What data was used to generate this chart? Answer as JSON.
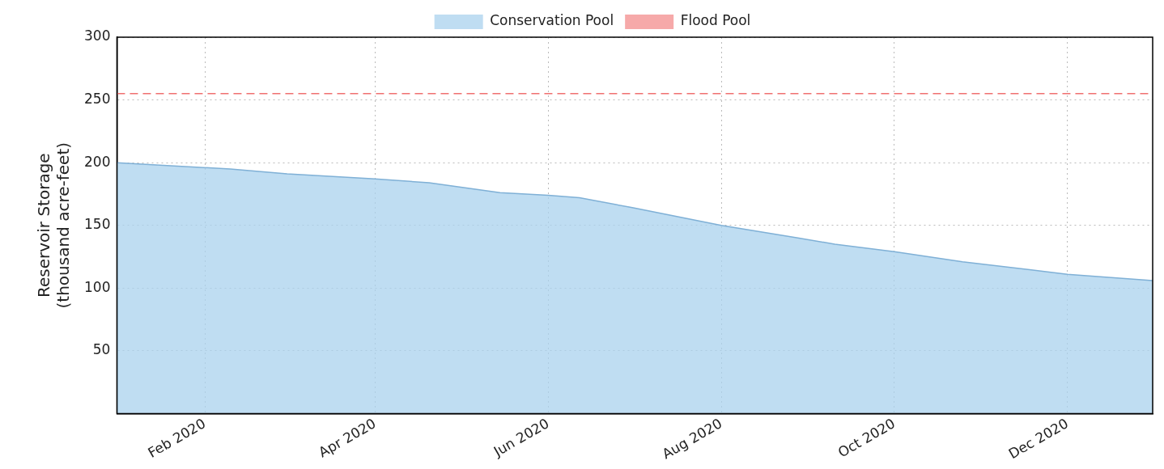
{
  "chart_data": {
    "type": "area",
    "ylabel": "Reservoir Storage\n(thousand acre-feet)",
    "x": [
      "2020-01-01",
      "2020-01-20",
      "2020-02-10",
      "2020-03-01",
      "2020-04-01",
      "2020-04-20",
      "2020-05-15",
      "2020-06-01",
      "2020-06-12",
      "2020-07-01",
      "2020-08-01",
      "2020-08-28",
      "2020-09-10",
      "2020-10-01",
      "2020-10-25",
      "2020-12-01",
      "2020-12-31"
    ],
    "series": [
      {
        "name": "Conservation Pool",
        "color": "#a9d2ee",
        "values": [
          200,
          197.5,
          195,
          191,
          187,
          184,
          176,
          174,
          172,
          164,
          150,
          140,
          135,
          129,
          121,
          111,
          106
        ]
      },
      {
        "name": "Flood Pool",
        "type": "line",
        "color": "#f07070",
        "line_style": "dashed",
        "values": [
          255,
          255,
          255,
          255,
          255,
          255,
          255,
          255,
          255,
          255,
          255,
          255,
          255,
          255,
          255,
          255,
          255
        ]
      }
    ],
    "xlim": [
      "2020-01-01",
      "2020-12-31"
    ],
    "xticks": [
      {
        "value": "2020-02-01",
        "label": "Feb 2020"
      },
      {
        "value": "2020-04-01",
        "label": "Apr 2020"
      },
      {
        "value": "2020-06-01",
        "label": "Jun 2020"
      },
      {
        "value": "2020-08-01",
        "label": "Aug 2020"
      },
      {
        "value": "2020-10-01",
        "label": "Oct 2020"
      },
      {
        "value": "2020-12-01",
        "label": "Dec 2020"
      }
    ],
    "ylim": [
      0,
      300
    ],
    "yticks": [
      50,
      100,
      150,
      200,
      250,
      300
    ],
    "grid": true,
    "legend": "top",
    "marker": "none"
  }
}
